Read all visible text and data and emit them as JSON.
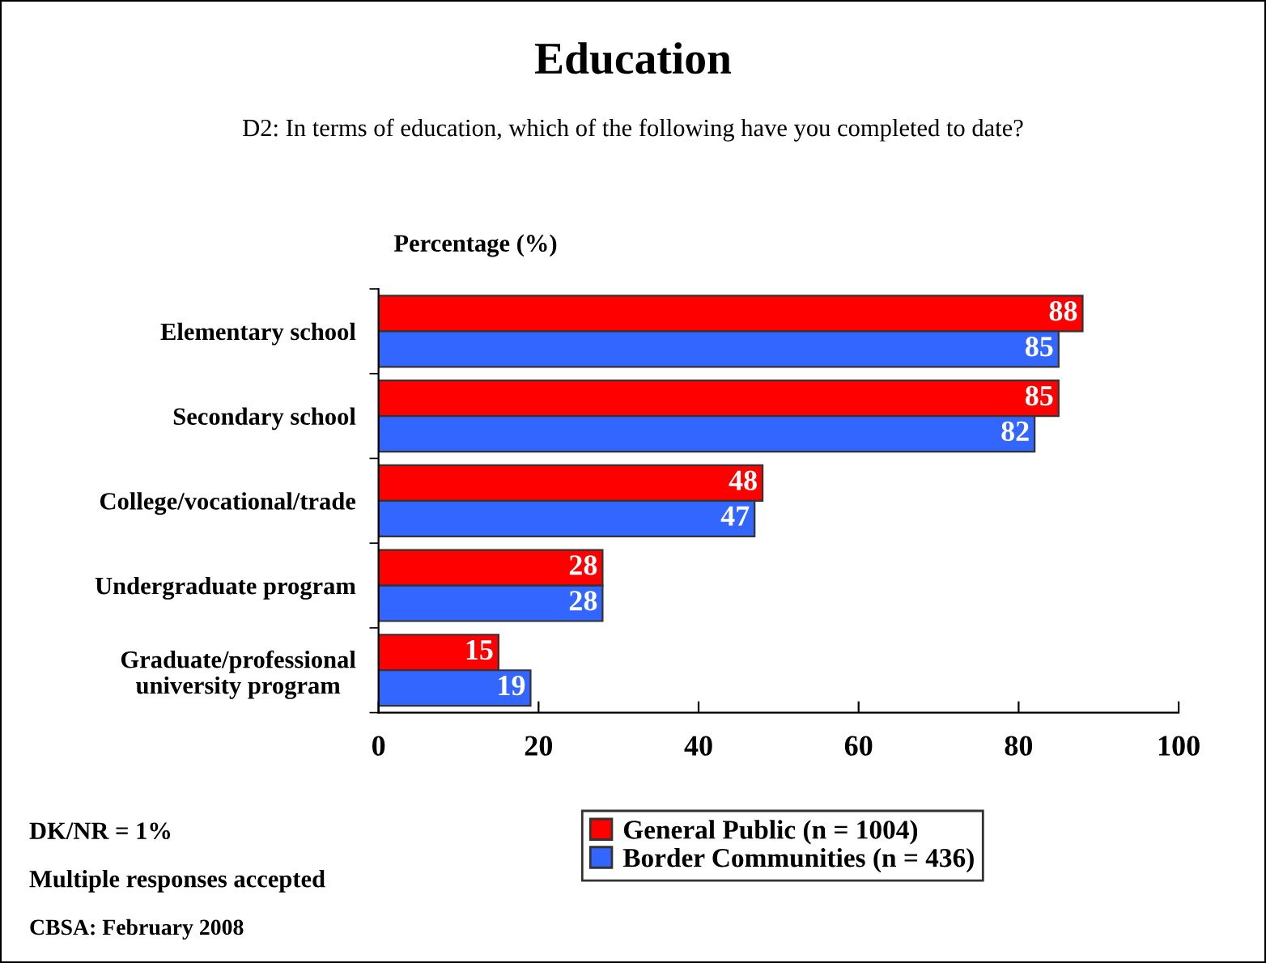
{
  "chart_data": {
    "type": "bar",
    "orientation": "horizontal",
    "title": "Education",
    "subtitle": "D2: In terms of education, which of the following have you completed to date?",
    "ylabel": "Percentage (%)",
    "categories": [
      "Elementary school",
      "Secondary school",
      "College/vocational/trade",
      "Undergraduate program",
      "Graduate/professional\nuniversity program"
    ],
    "series": [
      {
        "name": "General Public (n = 1004)",
        "color": "#ff0000",
        "values": [
          88,
          85,
          48,
          28,
          15
        ]
      },
      {
        "name": "Border Communities (n = 436)",
        "color": "#3366ff",
        "values": [
          85,
          82,
          47,
          28,
          19
        ]
      }
    ],
    "xlim": [
      0,
      100
    ],
    "xticks": [
      0,
      20,
      40,
      60,
      80,
      100
    ],
    "data_labels": true,
    "legend": "bottom",
    "grid": false,
    "annotations": [
      "DK/NR = 1%",
      "Multiple responses accepted",
      "CBSA: February 2008"
    ]
  }
}
